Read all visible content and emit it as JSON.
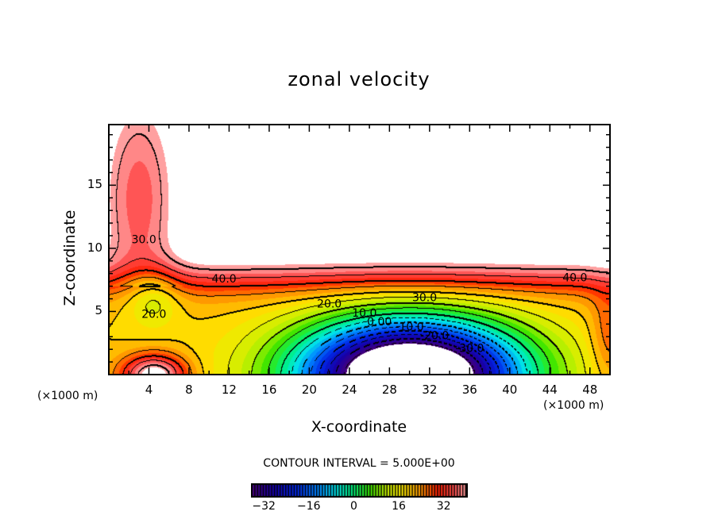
{
  "chart_data": {
    "type": "heatmap",
    "subtype": "filled-contour",
    "title": "zonal velocity",
    "xlabel": "X-coordinate",
    "ylabel": "Z-coordinate",
    "x_unit_label": "(×1000 m)",
    "y_unit_label": "(×1000 m)",
    "xlim": [
      0,
      50
    ],
    "ylim": [
      0,
      19.8
    ],
    "x_ticks": [
      4,
      8,
      12,
      16,
      20,
      24,
      28,
      32,
      36,
      40,
      44,
      48
    ],
    "y_ticks": [
      5,
      10,
      15
    ],
    "contour_interval_label": "CONTOUR INTERVAL = 5.000E+00",
    "contour_interval": 5,
    "value_range": [
      -36,
      42
    ],
    "contour_labels": [
      {
        "text": "30.0",
        "x": 3.5,
        "z": 10.4
      },
      {
        "text": "20.0",
        "x": 4.5,
        "z": 4.5
      },
      {
        "text": "40.0",
        "x": 11.5,
        "z": 7.3
      },
      {
        "text": "20.0",
        "x": 22,
        "z": 5.3
      },
      {
        "text": "10.0",
        "x": 25.5,
        "z": 4.6
      },
      {
        "text": "0.00",
        "x": 27,
        "z": 3.9
      },
      {
        "text": "-10.0",
        "x": 30,
        "z": 3.5
      },
      {
        "text": "-20.0",
        "x": 32.5,
        "z": 2.8
      },
      {
        "text": "-30.0",
        "x": 36,
        "z": 1.8
      },
      {
        "text": "30.0",
        "x": 31.5,
        "z": 5.8
      },
      {
        "text": "40.0",
        "x": 46.5,
        "z": 7.4
      }
    ],
    "features": {
      "positive_jet_core_max": 42,
      "negative_core_min": -36,
      "negative_core_center": {
        "x": 30,
        "z": 0.5
      },
      "yellow_min_center": {
        "x": 4.5,
        "z": 6.5
      },
      "blank_regions": [
        "upper-right above z≈7 for x≈8–49 (values above 40)",
        "bottom-left near x≈0–8,z<1.5",
        "bottom near x≈20–37,z<1.5 (values below -36)"
      ]
    },
    "colorbar": {
      "ticks": [
        -32,
        -16,
        0,
        16,
        32
      ],
      "range": [
        -36,
        40
      ],
      "colormap": "rainbow (purple-blue-cyan-green-yellow-orange-red-pink)"
    },
    "grid": false
  }
}
